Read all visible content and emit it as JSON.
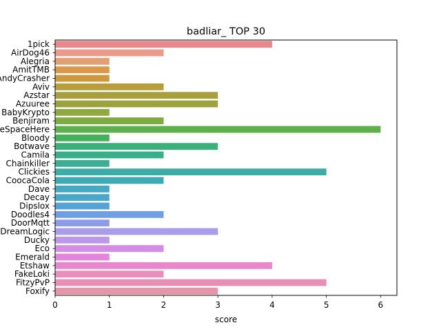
{
  "chart_data": {
    "type": "bar",
    "orientation": "horizontal",
    "title": "badliar_ TOP 30",
    "xlabel": "score",
    "ylabel": "",
    "xlim": [
      0,
      6.3
    ],
    "xticks": [
      0,
      1,
      2,
      3,
      4,
      5,
      6
    ],
    "grid": false,
    "categories": [
      "1pick",
      "AirDog46",
      "Alegria",
      "AmitTMB",
      "AndyCrasher",
      "Aviv",
      "Azstar",
      "Azuuree",
      "BabyKrypto",
      "Benjiram",
      "BeSpaceHere",
      "Bloody",
      "Botwave",
      "Camila",
      "Chainkiller",
      "Clickies",
      "CoocaCola",
      "Dave",
      "Decay",
      "Dipslox",
      "Doodles4",
      "DoorMqtt",
      "DreamLogic",
      "Ducky",
      "Eco",
      "Emerald",
      "Etshaw",
      "FakeLoki",
      "FitzyPvP",
      "Foxify"
    ],
    "values": [
      4,
      2,
      1,
      1,
      1,
      2,
      3,
      3,
      1,
      2,
      6,
      1,
      3,
      2,
      1,
      5,
      2,
      1,
      1,
      1,
      2,
      1,
      3,
      1,
      2,
      1,
      4,
      2,
      5,
      3
    ],
    "colors": [
      "#e8888a",
      "#e99a89",
      "#e0a071",
      "#d9984c",
      "#cc9a3c",
      "#b79e3a",
      "#a8a03c",
      "#9ca33c",
      "#8fa83f",
      "#7eab3f",
      "#5eb04a",
      "#44b05b",
      "#3cb07a",
      "#3aae88",
      "#3dad96",
      "#3eaca5",
      "#3faab3",
      "#44a9c1",
      "#49a7cc",
      "#55a2d7",
      "#6f9ee2",
      "#8e9ce8",
      "#a99ce8",
      "#bc98e8",
      "#d48de5",
      "#e584db",
      "#e887cc",
      "#e88ebf",
      "#e88fb5",
      "#e793a8"
    ]
  }
}
